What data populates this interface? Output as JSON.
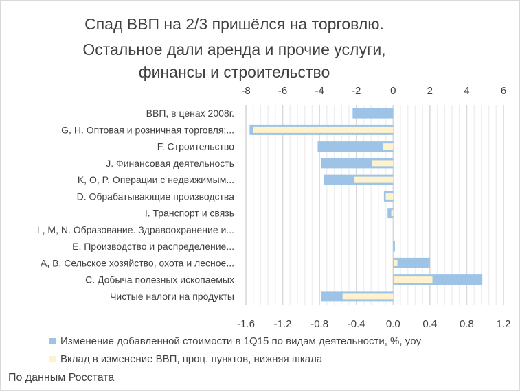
{
  "chart_data": {
    "type": "bar",
    "orientation": "horizontal",
    "title": [
      "Спад ВВП на 2/3 пришёлся на торговлю.",
      "Остальное дали аренда и прочие услуги,",
      "финансы и строительство"
    ],
    "categories": [
      "ВВП, в ценах 2008г.",
      "G, H. Оптовая и розничная торговля;...",
      "F. Строительство",
      "J. Финансовая деятельность",
      "K, O, P. Операции с недвижимым...",
      "D. Обрабатывающие производства",
      "I. Транспорт и связь",
      "L, M, N. Образование. Здравоохранение и...",
      "E. Производство и распределение...",
      "A, B. Сельское хозяйство, охота и лесное...",
      "C. Добыча полезных ископаемых",
      "Чистые налоги на продукты"
    ],
    "series": [
      {
        "name": "Изменение добавленной стоимости в 1Q15 по видам деятельности, %, yoy",
        "axis": "top",
        "color": "#9dc3e6",
        "values": [
          -2.2,
          -7.8,
          -4.1,
          -3.9,
          -3.75,
          -0.5,
          -0.3,
          0,
          0.1,
          2.0,
          4.85,
          -3.9
        ]
      },
      {
        "name": "Вклад в изменение  ВВП, проц. пунктов, нижняя шкала",
        "axis": "bottom",
        "color": "#fff2cc",
        "values": [
          null,
          -1.52,
          -0.11,
          -0.23,
          -0.42,
          -0.08,
          -0.02,
          0,
          0,
          0.04,
          0.42,
          -0.55
        ]
      }
    ],
    "top_axis": {
      "range": [
        -8,
        6
      ],
      "ticks": [
        "-8",
        "-6",
        "-4",
        "-2",
        "0",
        "2",
        "4",
        "6"
      ]
    },
    "bottom_axis": {
      "range": [
        -1.6,
        1.2
      ],
      "ticks": [
        "-1.6",
        "-1.2",
        "-0.8",
        "-0.4",
        "0.0",
        "0.4",
        "0.8",
        "1.2"
      ]
    },
    "legend": "bottom",
    "grid": true
  },
  "source": "По данным Росстата"
}
